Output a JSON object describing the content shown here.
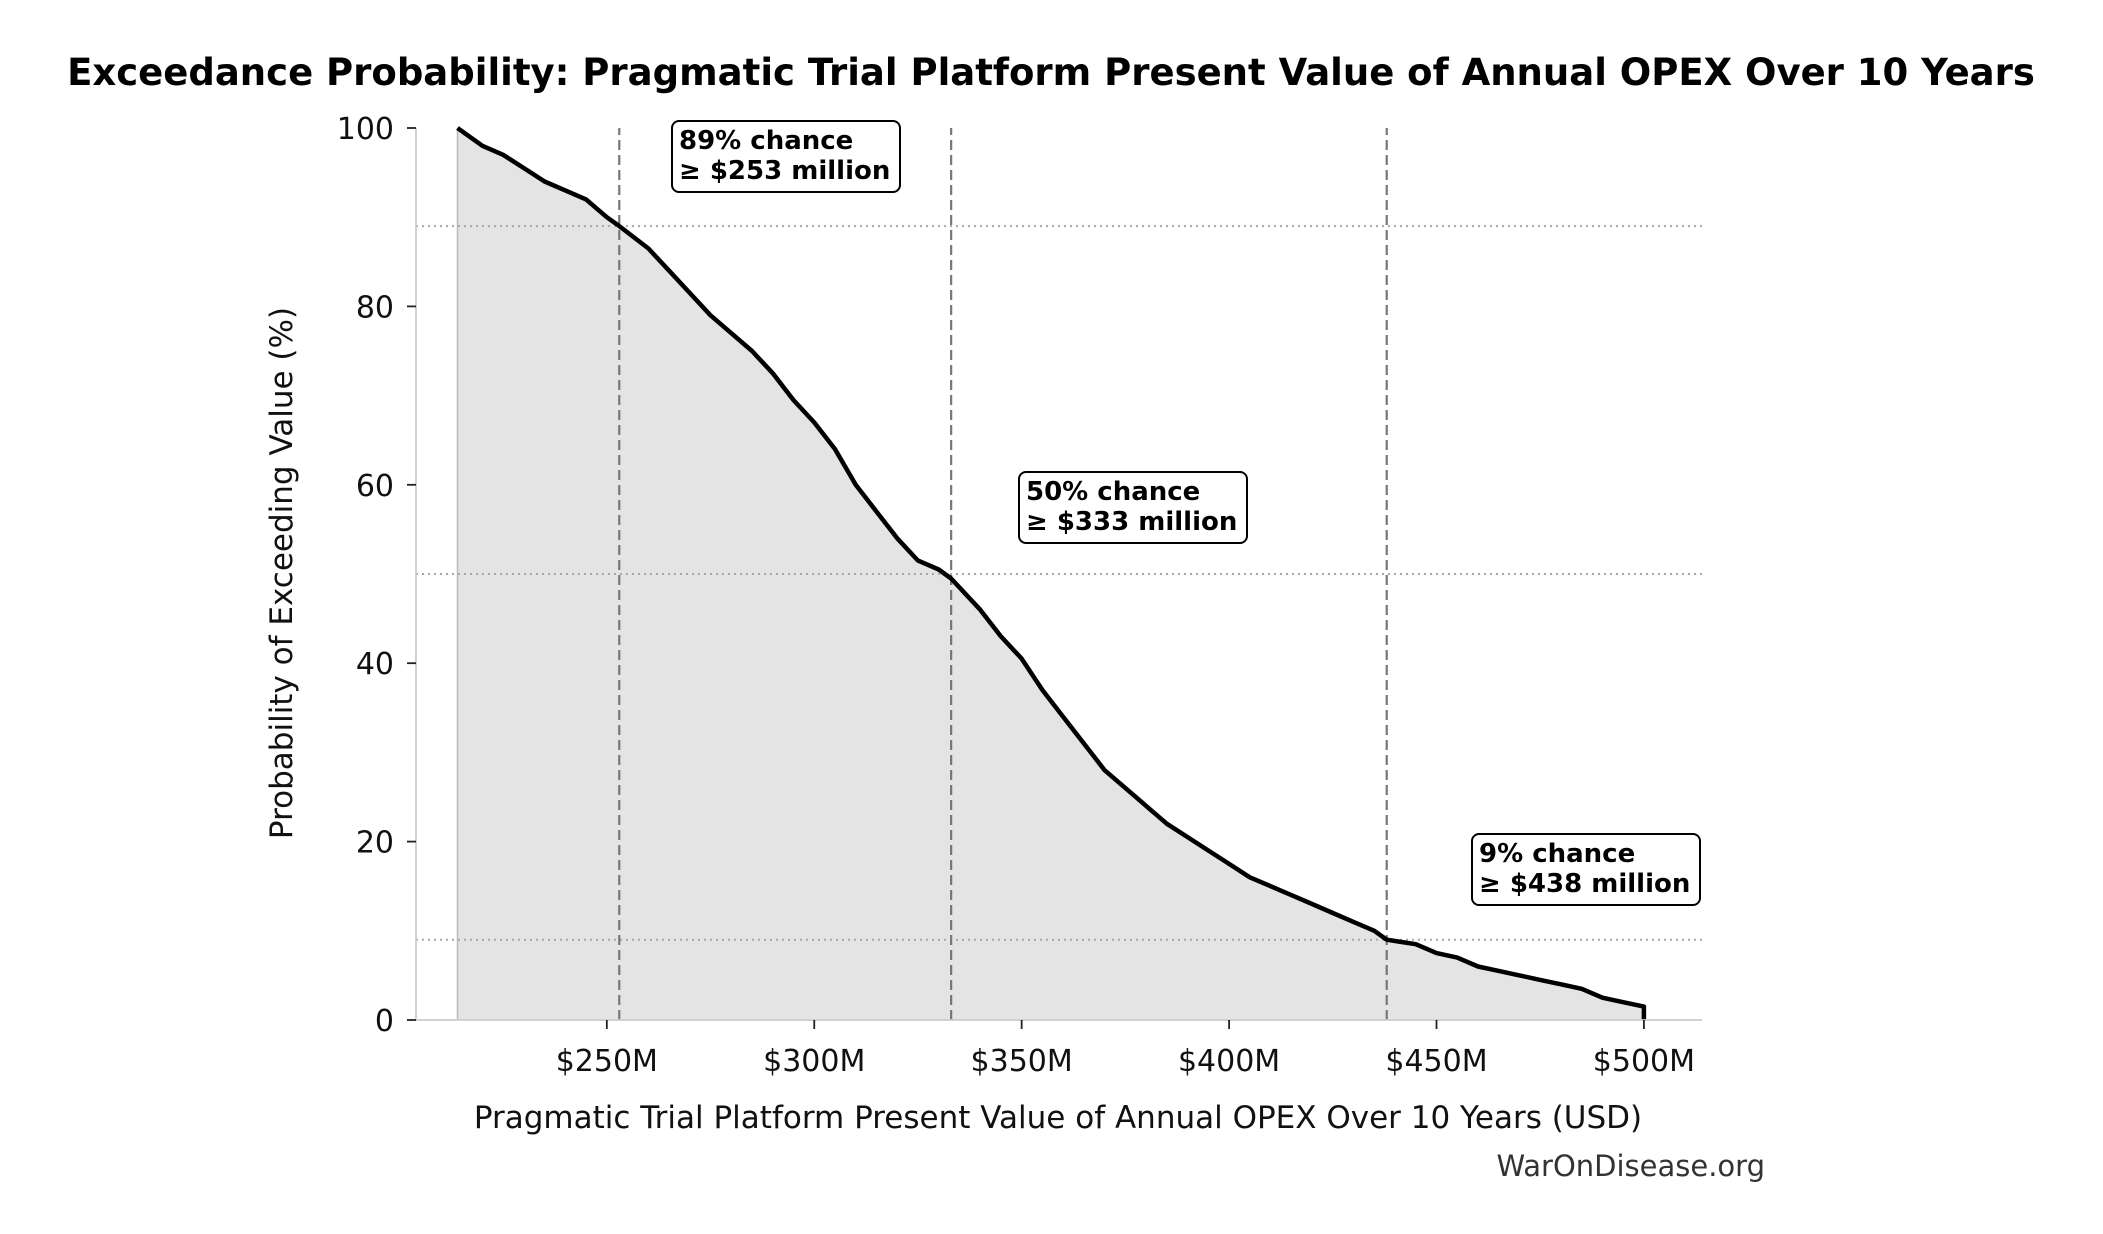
{
  "chart_data": {
    "type": "area",
    "title": "Exceedance Probability: Pragmatic Trial Platform Present Value of Annual OPEX Over 10 Years",
    "xlabel": "Pragmatic Trial Platform Present Value of Annual OPEX Over 10 Years (USD)",
    "ylabel": "Probability of Exceeding Value (%)",
    "xlim": [
      204,
      514
    ],
    "ylim": [
      0,
      100
    ],
    "x_ticks": [
      {
        "value": 250,
        "label": "$250M"
      },
      {
        "value": 300,
        "label": "$300M"
      },
      {
        "value": 350,
        "label": "$350M"
      },
      {
        "value": 400,
        "label": "$400M"
      },
      {
        "value": 450,
        "label": "$450M"
      },
      {
        "value": 500,
        "label": "$500M"
      }
    ],
    "y_ticks": [
      {
        "value": 0,
        "label": "0"
      },
      {
        "value": 20,
        "label": "20"
      },
      {
        "value": 40,
        "label": "40"
      },
      {
        "value": 60,
        "label": "60"
      },
      {
        "value": 80,
        "label": "80"
      },
      {
        "value": 100,
        "label": "100"
      }
    ],
    "series": [
      {
        "x": [
          214,
          220,
          225,
          230,
          235,
          240,
          245,
          250,
          253,
          260,
          265,
          270,
          275,
          280,
          285,
          290,
          295,
          300,
          305,
          310,
          315,
          320,
          325,
          330,
          333,
          340,
          345,
          350,
          355,
          360,
          365,
          370,
          375,
          380,
          385,
          390,
          395,
          400,
          405,
          410,
          415,
          420,
          425,
          430,
          435,
          438,
          445,
          450,
          455,
          460,
          465,
          470,
          475,
          480,
          485,
          490,
          495,
          500,
          500
        ],
        "y": [
          100,
          98,
          97,
          95.5,
          94,
          93,
          92,
          90,
          89,
          86.5,
          84,
          81.5,
          79,
          77,
          75,
          72.5,
          69.5,
          67,
          64,
          60,
          57,
          54,
          51.5,
          50.5,
          49.5,
          46,
          43,
          40.5,
          37,
          34,
          31,
          28,
          26,
          24,
          22,
          20.5,
          19,
          17.5,
          16,
          15,
          14,
          13,
          12,
          11,
          10,
          9,
          8.5,
          7.5,
          7,
          6,
          5.5,
          5,
          4.5,
          4,
          3.5,
          2.5,
          2,
          1.5,
          0
        ]
      }
    ],
    "thresholds": [
      {
        "x": 253,
        "y": 89
      },
      {
        "x": 333,
        "y": 50
      },
      {
        "x": 438,
        "y": 9
      }
    ],
    "annotations": [
      {
        "line1": "89% chance",
        "line2": "≥ $253 million"
      },
      {
        "line1": "50% chance",
        "line2": "≥ $333 million"
      },
      {
        "line1": "9% chance",
        "line2": "≥ $438 million"
      }
    ],
    "grid": false,
    "line_color": "#000000",
    "fill_color": "#e4e4e4"
  },
  "watermark": "WarOnDisease.org"
}
